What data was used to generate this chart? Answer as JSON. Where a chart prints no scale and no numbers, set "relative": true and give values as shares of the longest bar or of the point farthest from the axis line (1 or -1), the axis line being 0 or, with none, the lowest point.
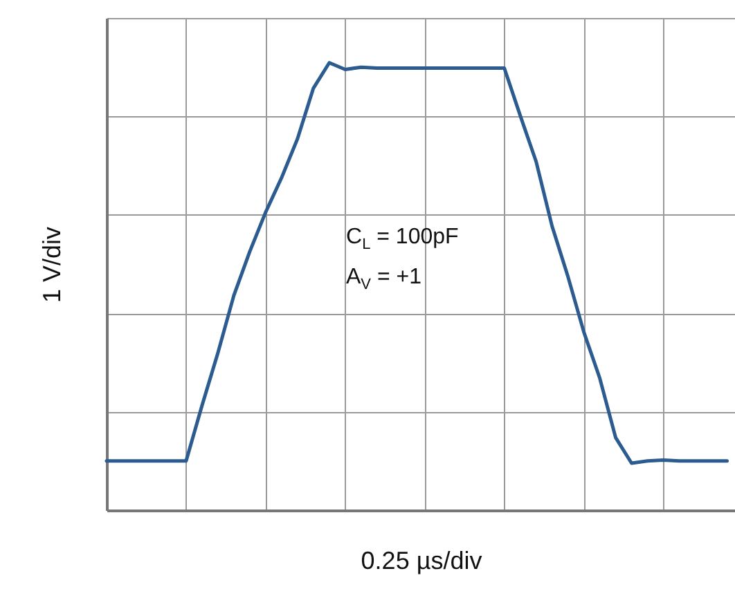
{
  "chart_data": {
    "type": "line",
    "relative": true,
    "xlabel": "0.25 µs/div",
    "ylabel": "1 V/div",
    "annotations": [
      "C$_{L}$ = 100pF",
      "A$_{V}$ = +1"
    ],
    "grid": true,
    "categories": [
      null,
      null,
      null,
      null,
      null,
      null,
      null,
      null,
      null,
      null,
      null,
      null,
      null,
      null,
      null,
      null,
      null,
      null,
      null,
      null,
      null,
      null,
      null,
      null,
      null,
      null,
      null,
      null,
      null,
      null,
      null,
      null,
      null,
      null,
      null,
      null,
      null,
      null,
      null,
      null
    ],
    "series": [
      {
        "color": "#2b5b8f",
        "values": [
          0.11,
          0.11,
          0.11,
          0.11,
          0.11,
          0.11,
          0.234,
          0.352,
          0.48,
          0.578,
          0.666,
          0.743,
          0.83,
          0.943,
          1.0,
          0.985,
          0.99,
          0.988,
          0.988,
          0.988,
          0.988,
          0.988,
          0.988,
          0.988,
          0.988,
          0.988,
          0.882,
          0.779,
          0.635,
          0.522,
          0.398,
          0.295,
          0.162,
          0.105,
          0.11,
          0.112,
          0.11,
          0.11,
          0.11,
          0.11
        ]
      }
    ]
  }
}
